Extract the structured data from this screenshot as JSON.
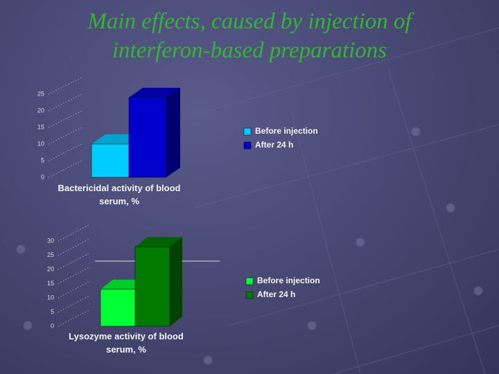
{
  "title": "Main effects, caused by injection of interferon-based preparations",
  "chart_data": [
    {
      "type": "bar",
      "x_label": "Bactericidal activity of blood serum, %",
      "series": [
        {
          "name": "Before injection",
          "color": "#00ccff",
          "values": [
            10
          ]
        },
        {
          "name": "After 24 h",
          "color": "#0000cc",
          "values": [
            24
          ]
        }
      ],
      "ylim": [
        0,
        25
      ],
      "yticks": [
        0,
        5,
        10,
        15,
        20,
        25
      ],
      "grid": true
    },
    {
      "type": "bar",
      "x_label": "Lysozyme activity of blood serum, %",
      "series": [
        {
          "name": "Before injection",
          "color": "#00ff33",
          "values": [
            13
          ]
        },
        {
          "name": "After 24 h",
          "color": "#007a00",
          "values": [
            28
          ]
        }
      ],
      "ylim": [
        0,
        30
      ],
      "yticks": [
        0,
        5,
        10,
        15,
        20,
        25,
        30
      ],
      "grid": true
    }
  ]
}
